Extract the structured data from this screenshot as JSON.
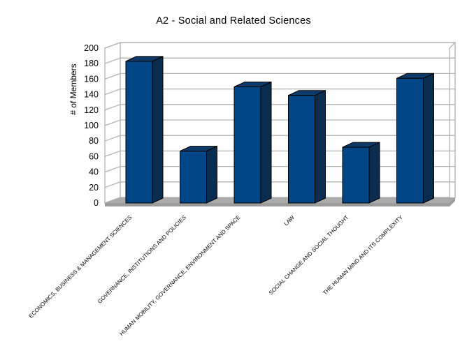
{
  "page": {
    "background": "#ffffff"
  },
  "chart_data": {
    "type": "bar",
    "style": "3d-column",
    "title": "A2 - Social and Related Sciences",
    "xlabel": "",
    "ylabel": "# of Members",
    "categories": [
      "ECONOMICS, BUSINESS & MANAGEMENT SCIENCES",
      "GOVERNANCE, INSTITUTIONS AND POLICIES",
      "HUMAN MOBILITY, GOVERNANCE, ENVIRONMENT AND SPACE",
      "LAW",
      "SOCIAL CHANGE AND SOCIAL THOUGHT",
      "THE HUMAN MIND AND ITS COMPLEXITY"
    ],
    "values": [
      183,
      67,
      150,
      139,
      72,
      161
    ],
    "series": [
      {
        "name": "# of Members",
        "values": [
          183,
          67,
          150,
          139,
          72,
          161
        ]
      }
    ],
    "ylim": [
      0,
      200
    ],
    "yticks": [
      0,
      20,
      40,
      60,
      80,
      100,
      120,
      140,
      160,
      180,
      200
    ],
    "grid": true,
    "legend": false,
    "category_label_rotation_deg": 45,
    "colors": {
      "bar_front": "#004586",
      "bar_top": "#0d3a68",
      "bar_side": "#0a2c4f",
      "bar_outline": "#000000",
      "wall_line": "#b3b3b3",
      "wall_fill": "#ffffff",
      "floor": "#ababab",
      "floor_front": "#9c9c9c",
      "text": "#000000"
    }
  }
}
